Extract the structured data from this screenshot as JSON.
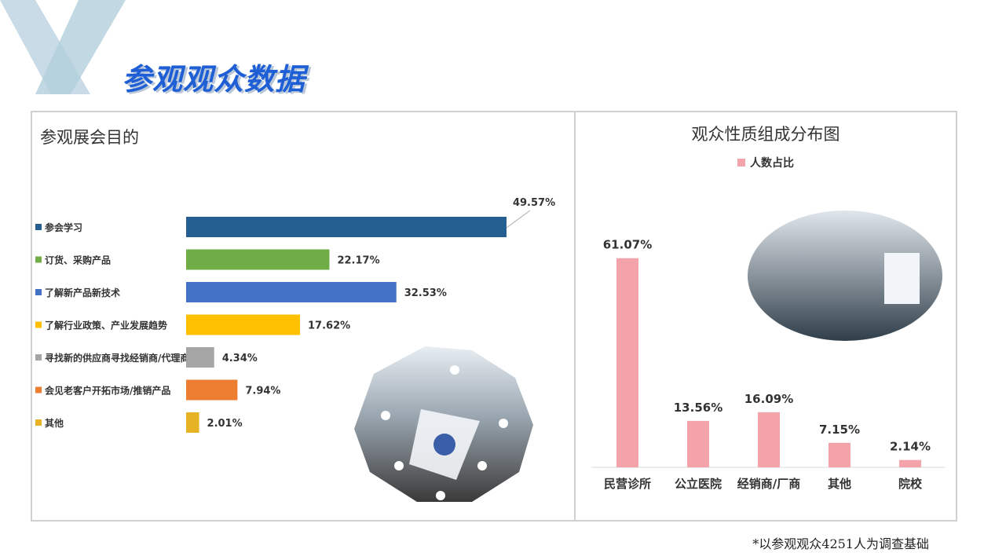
{
  "page_title": "参观观众数据",
  "footnote": "*以参观观众4251人为调查基础",
  "chart_data": [
    {
      "type": "bar",
      "orientation": "horizontal",
      "title": "参观展会目的",
      "categories": [
        "参会学习",
        "订货、采购产品",
        "了解新产品新技术",
        "了解行业政策、产业发展趋势",
        "寻找新的供应商寻找经销商/代理商",
        "会见老客户开拓市场/推销产品",
        "其他"
      ],
      "values": [
        49.57,
        22.17,
        32.53,
        17.62,
        4.34,
        7.94,
        2.01
      ],
      "labels": [
        "49.57%",
        "22.17%",
        "32.53%",
        "17.62%",
        "4.34%",
        "7.94%",
        "2.01%"
      ],
      "colors": [
        "#255e91",
        "#70ad47",
        "#4472c4",
        "#ffc000",
        "#a5a5a5",
        "#ed7d31",
        "#e6b325"
      ],
      "unit": "%",
      "legend": "left",
      "grid": false
    },
    {
      "type": "bar",
      "orientation": "vertical",
      "title": "观众性质组成分布图",
      "categories": [
        "民营诊所",
        "公立医院",
        "经销商/厂商",
        "其他",
        "院校"
      ],
      "series": [
        {
          "name": "人数占比",
          "values": [
            61.07,
            13.56,
            16.09,
            7.15,
            2.14
          ]
        }
      ],
      "labels": [
        "61.07%",
        "13.56%",
        "16.09%",
        "7.15%",
        "2.14%"
      ],
      "color": "#f4a3ab",
      "unit": "%",
      "legend": "top",
      "grid": false
    }
  ]
}
